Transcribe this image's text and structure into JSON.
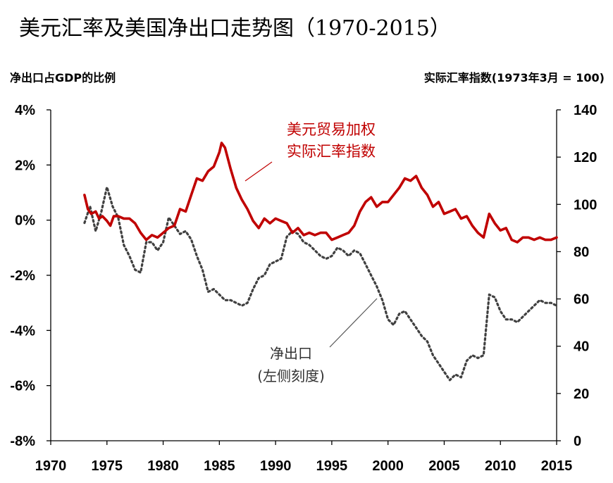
{
  "title": "美元汇率及美国净出口走势图（1970-2015）",
  "left_axis_label": "净出口占GDP的比例",
  "right_axis_label": "实际汇率指数(1973年3月 = 100)",
  "annotations": {
    "exchange_rate": [
      "美元贸易加权",
      "实际汇率指数"
    ],
    "net_exports": [
      "净出口",
      "(左侧刻度)"
    ]
  },
  "colors": {
    "exchange_rate": "#c00000",
    "net_exports": "#404040",
    "axis": "#000000"
  },
  "chart_data": {
    "type": "line",
    "x_ticks": [
      1970,
      1975,
      1980,
      1985,
      1990,
      1995,
      2000,
      2005,
      2010,
      2015
    ],
    "xlim": [
      1970,
      2015
    ],
    "y_left": {
      "ticks": [
        "4%",
        "2%",
        "0%",
        "-2%",
        "-4%",
        "-6%",
        "-8%"
      ],
      "lim": [
        -8,
        4
      ],
      "unit": "%"
    },
    "y_right": {
      "ticks": [
        "140",
        "120",
        "100",
        "80",
        "60",
        "40",
        "20",
        "0"
      ],
      "lim": [
        0,
        140
      ]
    },
    "grid": false,
    "series": [
      {
        "name": "美元贸易加权实际汇率指数",
        "axis": "right",
        "style": "solid",
        "points": [
          [
            1973.0,
            104
          ],
          [
            1973.3,
            98
          ],
          [
            1973.6,
            96
          ],
          [
            1974.0,
            97
          ],
          [
            1974.3,
            94
          ],
          [
            1974.6,
            95
          ],
          [
            1975.0,
            93
          ],
          [
            1975.3,
            91
          ],
          [
            1975.6,
            95
          ],
          [
            1976.0,
            95
          ],
          [
            1976.5,
            94
          ],
          [
            1977.0,
            94
          ],
          [
            1977.5,
            92
          ],
          [
            1978.0,
            88
          ],
          [
            1978.5,
            85
          ],
          [
            1979.0,
            87
          ],
          [
            1979.5,
            86
          ],
          [
            1980.0,
            88
          ],
          [
            1980.5,
            90
          ],
          [
            1981.0,
            91
          ],
          [
            1981.5,
            98
          ],
          [
            1982.0,
            97
          ],
          [
            1982.5,
            104
          ],
          [
            1983.0,
            111
          ],
          [
            1983.5,
            110
          ],
          [
            1984.0,
            114
          ],
          [
            1984.5,
            116
          ],
          [
            1985.0,
            122
          ],
          [
            1985.2,
            126
          ],
          [
            1985.5,
            124
          ],
          [
            1986.0,
            115
          ],
          [
            1986.5,
            107
          ],
          [
            1987.0,
            102
          ],
          [
            1987.5,
            98
          ],
          [
            1988.0,
            93
          ],
          [
            1988.5,
            90
          ],
          [
            1989.0,
            94
          ],
          [
            1989.5,
            92
          ],
          [
            1990.0,
            94
          ],
          [
            1990.5,
            93
          ],
          [
            1991.0,
            92
          ],
          [
            1991.5,
            88
          ],
          [
            1992.0,
            90
          ],
          [
            1992.5,
            87
          ],
          [
            1993.0,
            88
          ],
          [
            1993.5,
            87
          ],
          [
            1994.0,
            88
          ],
          [
            1994.5,
            88
          ],
          [
            1995.0,
            85
          ],
          [
            1995.5,
            86
          ],
          [
            1996.0,
            87
          ],
          [
            1996.5,
            88
          ],
          [
            1997.0,
            91
          ],
          [
            1997.5,
            97
          ],
          [
            1998.0,
            101
          ],
          [
            1998.5,
            103
          ],
          [
            1999.0,
            99
          ],
          [
            1999.5,
            101
          ],
          [
            2000.0,
            101
          ],
          [
            2000.5,
            104
          ],
          [
            2001.0,
            107
          ],
          [
            2001.5,
            111
          ],
          [
            2002.0,
            110
          ],
          [
            2002.5,
            112
          ],
          [
            2003.0,
            107
          ],
          [
            2003.5,
            104
          ],
          [
            2004.0,
            99
          ],
          [
            2004.5,
            101
          ],
          [
            2005.0,
            96
          ],
          [
            2005.5,
            97
          ],
          [
            2006.0,
            98
          ],
          [
            2006.5,
            94
          ],
          [
            2007.0,
            95
          ],
          [
            2007.5,
            91
          ],
          [
            2008.0,
            88
          ],
          [
            2008.5,
            86
          ],
          [
            2009.0,
            96
          ],
          [
            2009.5,
            92
          ],
          [
            2010.0,
            89
          ],
          [
            2010.5,
            90
          ],
          [
            2011.0,
            85
          ],
          [
            2011.5,
            84
          ],
          [
            2012.0,
            86
          ],
          [
            2012.5,
            86
          ],
          [
            2013.0,
            85
          ],
          [
            2013.5,
            86
          ],
          [
            2014.0,
            85
          ],
          [
            2014.5,
            85
          ],
          [
            2015.0,
            86
          ]
        ]
      },
      {
        "name": "净出口",
        "axis": "left",
        "style": "dotted",
        "points": [
          [
            1973.0,
            -0.1
          ],
          [
            1973.5,
            0.5
          ],
          [
            1974.0,
            -0.4
          ],
          [
            1974.5,
            0.3
          ],
          [
            1975.0,
            1.2
          ],
          [
            1975.5,
            0.5
          ],
          [
            1976.0,
            0.1
          ],
          [
            1976.5,
            -0.9
          ],
          [
            1977.0,
            -1.3
          ],
          [
            1977.5,
            -1.8
          ],
          [
            1978.0,
            -1.9
          ],
          [
            1978.5,
            -0.8
          ],
          [
            1979.0,
            -0.8
          ],
          [
            1979.5,
            -1.1
          ],
          [
            1980.0,
            -0.8
          ],
          [
            1980.5,
            0.1
          ],
          [
            1981.0,
            -0.2
          ],
          [
            1981.5,
            -0.5
          ],
          [
            1982.0,
            -0.4
          ],
          [
            1982.5,
            -0.7
          ],
          [
            1983.0,
            -1.3
          ],
          [
            1983.5,
            -1.8
          ],
          [
            1984.0,
            -2.6
          ],
          [
            1984.5,
            -2.5
          ],
          [
            1985.0,
            -2.7
          ],
          [
            1985.5,
            -2.9
          ],
          [
            1986.0,
            -2.9
          ],
          [
            1986.5,
            -3.0
          ],
          [
            1987.0,
            -3.1
          ],
          [
            1987.5,
            -3.0
          ],
          [
            1988.0,
            -2.5
          ],
          [
            1988.5,
            -2.1
          ],
          [
            1989.0,
            -2.0
          ],
          [
            1989.5,
            -1.6
          ],
          [
            1990.0,
            -1.5
          ],
          [
            1990.5,
            -1.4
          ],
          [
            1991.0,
            -0.6
          ],
          [
            1991.5,
            -0.4
          ],
          [
            1992.0,
            -0.5
          ],
          [
            1992.5,
            -0.8
          ],
          [
            1993.0,
            -0.9
          ],
          [
            1993.5,
            -1.1
          ],
          [
            1994.0,
            -1.3
          ],
          [
            1994.5,
            -1.4
          ],
          [
            1995.0,
            -1.3
          ],
          [
            1995.5,
            -1.0
          ],
          [
            1996.0,
            -1.1
          ],
          [
            1996.5,
            -1.3
          ],
          [
            1997.0,
            -1.1
          ],
          [
            1997.5,
            -1.2
          ],
          [
            1998.0,
            -1.6
          ],
          [
            1998.5,
            -2.0
          ],
          [
            1999.0,
            -2.4
          ],
          [
            1999.5,
            -2.9
          ],
          [
            2000.0,
            -3.6
          ],
          [
            2000.5,
            -3.8
          ],
          [
            2001.0,
            -3.4
          ],
          [
            2001.5,
            -3.3
          ],
          [
            2002.0,
            -3.6
          ],
          [
            2002.5,
            -3.9
          ],
          [
            2003.0,
            -4.2
          ],
          [
            2003.5,
            -4.4
          ],
          [
            2004.0,
            -4.9
          ],
          [
            2004.5,
            -5.2
          ],
          [
            2005.0,
            -5.5
          ],
          [
            2005.5,
            -5.8
          ],
          [
            2006.0,
            -5.6
          ],
          [
            2006.5,
            -5.7
          ],
          [
            2007.0,
            -5.1
          ],
          [
            2007.5,
            -4.9
          ],
          [
            2008.0,
            -5.0
          ],
          [
            2008.5,
            -4.9
          ],
          [
            2009.0,
            -2.7
          ],
          [
            2009.5,
            -2.8
          ],
          [
            2010.0,
            -3.3
          ],
          [
            2010.5,
            -3.6
          ],
          [
            2011.0,
            -3.6
          ],
          [
            2011.5,
            -3.7
          ],
          [
            2012.0,
            -3.5
          ],
          [
            2012.5,
            -3.3
          ],
          [
            2013.0,
            -3.1
          ],
          [
            2013.5,
            -2.9
          ],
          [
            2014.0,
            -3.0
          ],
          [
            2014.5,
            -3.0
          ],
          [
            2015.0,
            -3.1
          ]
        ]
      }
    ]
  }
}
